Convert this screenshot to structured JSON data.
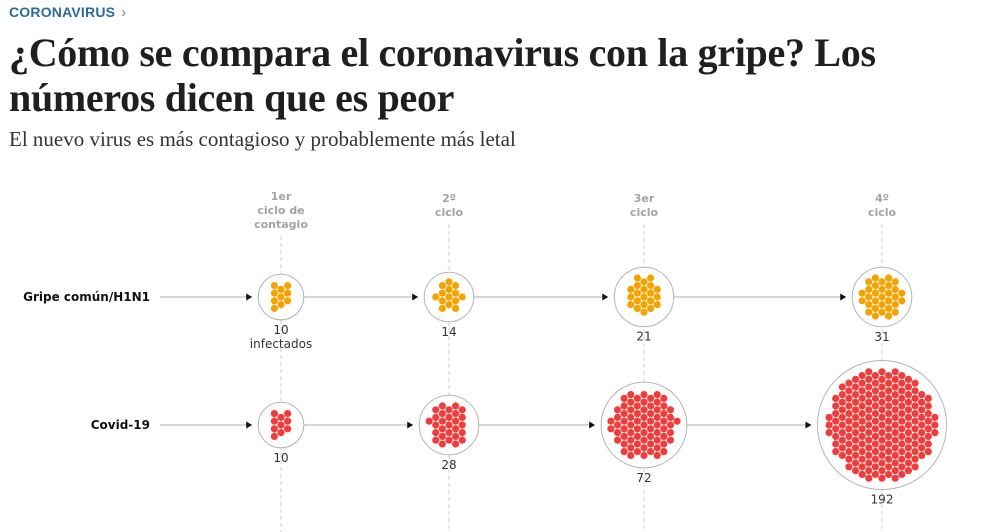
{
  "header": {
    "kicker": "CORONAVIRUS",
    "kicker_chevron": "›",
    "headline": "¿Cómo se compara el coronavirus con la gripe? Los números dicen que es peor",
    "subhead": "El nuevo virus es más contagioso y probablemente más letal"
  },
  "colors": {
    "flu": "#f5a300",
    "covid": "#f23c3c",
    "kicker": "#2a6a9b",
    "cycle_label": "#a3a3a3"
  },
  "chart_data": {
    "type": "bubble-flow",
    "title": "¿Cómo se compara el coronavirus con la gripe?",
    "categories": [
      [
        "1er",
        "ciclo de",
        "contagio"
      ],
      [
        "2º",
        "ciclo"
      ],
      [
        "3er",
        "ciclo"
      ],
      [
        "4º",
        "ciclo"
      ]
    ],
    "first_value_suffix": "infectados",
    "series": [
      {
        "name": "Gripe común/H1N1",
        "color": "#f5a300",
        "values": [
          10,
          14,
          21,
          31
        ],
        "show_suffix": true
      },
      {
        "name": "Covid-19",
        "color": "#f23c3c",
        "values": [
          10,
          28,
          72,
          192
        ],
        "show_suffix": false
      }
    ]
  }
}
